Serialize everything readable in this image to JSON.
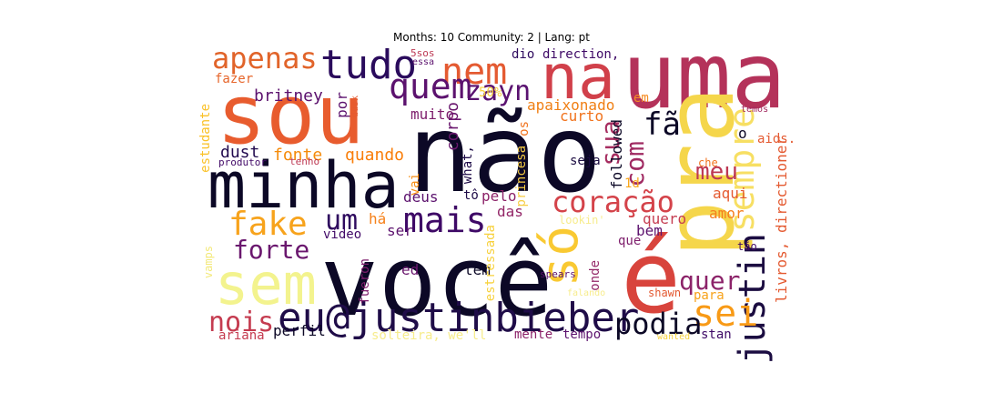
{
  "title": "Months: 10 Community: 2 | Lang: pt",
  "words": [
    {
      "text": "não",
      "color": "#0c0826"
    },
    {
      "text": "você",
      "color": "#0c0826"
    },
    {
      "text": "uma",
      "color": "#b4325a"
    },
    {
      "text": "sou",
      "color": "#e85c2e"
    },
    {
      "text": "minha",
      "color": "#0c0826"
    },
    {
      "text": "pra",
      "color": "#f5d64b"
    },
    {
      "text": "é",
      "color": "#d8443c"
    },
    {
      "text": "na",
      "color": "#d1404a"
    },
    {
      "text": "sem",
      "color": "#f3f38e"
    },
    {
      "text": "eu@justinbieber",
      "color": "#1f0c48"
    },
    {
      "text": "tudo",
      "color": "#2a0b5c"
    },
    {
      "text": "apenas",
      "color": "#e1642a"
    },
    {
      "text": "nem",
      "color": "#e45a31"
    },
    {
      "text": "quem",
      "color": "#5c126e"
    },
    {
      "text": "zayn",
      "color": "#5a1270"
    },
    {
      "text": "só",
      "color": "#f9c932"
    },
    {
      "text": "mais",
      "color": "#3e0966"
    },
    {
      "text": "fake",
      "color": "#f7a31c"
    },
    {
      "text": "um",
      "color": "#2e0a5e"
    },
    {
      "text": "coração",
      "color": "#d4434a"
    },
    {
      "text": "sempre",
      "color": "#f7df63"
    },
    {
      "text": "justin",
      "color": "#1b0c41"
    },
    {
      "text": "sei",
      "color": "#f89a16"
    },
    {
      "text": "podia",
      "color": "#0c0826"
    },
    {
      "text": "nois",
      "color": "#c53c50"
    },
    {
      "text": "forte",
      "color": "#6a176e"
    },
    {
      "text": "meu",
      "color": "#bd3853"
    },
    {
      "text": "com",
      "color": "#a02a62"
    },
    {
      "text": "sua",
      "color": "#a62d60"
    },
    {
      "text": "fã",
      "color": "#0c0826"
    },
    {
      "text": "quer",
      "color": "#8c2369"
    },
    {
      "text": "britney",
      "color": "#5c126e"
    },
    {
      "text": "muito",
      "color": "#7e1e6c"
    },
    {
      "text": "corpo",
      "color": "#6a176e"
    },
    {
      "text": "apaixonado",
      "color": "#f07f14"
    },
    {
      "text": "curto",
      "color": "#f1731d"
    },
    {
      "text": "dust",
      "color": "#220b4f"
    },
    {
      "text": "fonte",
      "color": "#f58b0a"
    },
    {
      "text": "quando",
      "color": "#f97e0a"
    },
    {
      "text": "dio",
      "color": "#2e0a5e"
    },
    {
      "text": "direction,",
      "color": "#3e0966"
    },
    {
      "text": "em",
      "color": "#f68d24"
    },
    {
      "text": "50%",
      "color": "#f7d13d"
    },
    {
      "text": "fazer",
      "color": "#e6652a"
    },
    {
      "text": "estudante",
      "color": "#fac127"
    },
    {
      "text": "por",
      "color": "#5c126e"
    },
    {
      "text": "deus",
      "color": "#5c126e"
    },
    {
      "text": "vai",
      "color": "#f68d12"
    },
    {
      "text": "há",
      "color": "#f6811a"
    },
    {
      "text": "tô",
      "color": "#1f0c48"
    },
    {
      "text": "pelo",
      "color": "#8c2369"
    },
    {
      "text": "das",
      "color": "#932667"
    },
    {
      "text": "ser",
      "color": "#5c126e"
    },
    {
      "text": "princesa",
      "color": "#f7cd44"
    },
    {
      "text": "os",
      "color": "#f1731d"
    },
    {
      "text": "seja",
      "color": "#1b0c41"
    },
    {
      "text": "followed",
      "color": "#0c0826"
    },
    {
      "text": "1d",
      "color": "#f9a71a"
    },
    {
      "text": "quero",
      "color": "#c53c50"
    },
    {
      "text": "bem",
      "color": "#5c126e"
    },
    {
      "text": "que",
      "color": "#7e1e6c"
    },
    {
      "text": "aqui",
      "color": "#e45a31"
    },
    {
      "text": "amor",
      "color": "#f57e1e"
    },
    {
      "text": "o",
      "color": "#0c0826"
    },
    {
      "text": "aids.",
      "color": "#e45a31"
    },
    {
      "text": "che",
      "color": "#f1731d"
    },
    {
      "text": "temos",
      "color": "#a32a60"
    },
    {
      "text": "tão",
      "color": "#420a68"
    },
    {
      "text": "livros, directioner",
      "color": "#e45a31"
    },
    {
      "text": "para",
      "color": "#f7a31c"
    },
    {
      "text": "shawn",
      "color": "#e35830"
    },
    {
      "text": "stan",
      "color": "#3e0966"
    },
    {
      "text": "tempo",
      "color": "#5c126e"
    },
    {
      "text": "mente",
      "color": "#8c2369"
    },
    {
      "text": "tem",
      "color": "#0c0826"
    },
    {
      "text": "ed",
      "color": "#6a176e"
    },
    {
      "text": "fueron",
      "color": "#7e1e6c"
    },
    {
      "text": "onde",
      "color": "#932667"
    },
    {
      "text": "estressada",
      "color": "#f7d13d"
    },
    {
      "text": "vídeo",
      "color": "#420a68"
    },
    {
      "text": "vamps",
      "color": "#f3e97a"
    },
    {
      "text": "perfil",
      "color": "#0c0826"
    },
    {
      "text": "ariana",
      "color": "#c53c50"
    },
    {
      "text": "solteira, we'll",
      "color": "#f7ec8c"
    },
    {
      "text": "produtor",
      "color": "#420a68"
    },
    {
      "text": "tenho",
      "color": "#bd3853"
    },
    {
      "text": "dusk",
      "color": "#e45a31"
    },
    {
      "text": "5sos",
      "color": "#bd3853"
    },
    {
      "text": "essa",
      "color": "#5c126e"
    },
    {
      "text": "lookin'",
      "color": "#f7ec8c"
    },
    {
      "text": "spears",
      "color": "#5c126e"
    },
    {
      "text": "wanted",
      "color": "#f7d13d"
    },
    {
      "text": "what,",
      "color": "#1f0c48"
    },
    {
      "text": "falando",
      "color": "#f7ec8c"
    }
  ]
}
